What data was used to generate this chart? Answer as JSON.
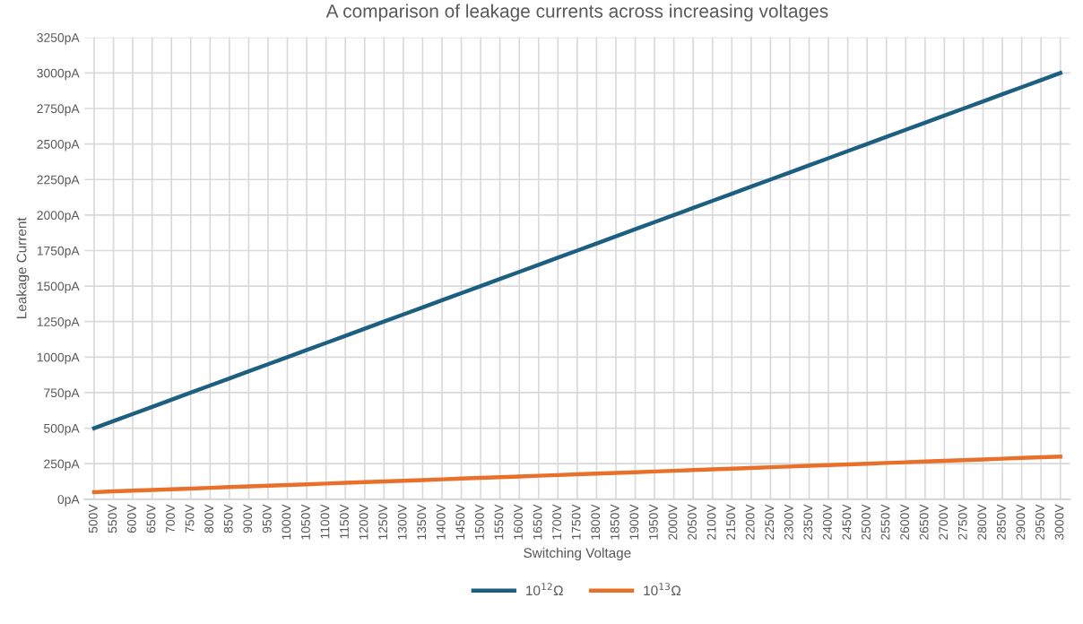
{
  "chart_data": {
    "type": "line",
    "title": "A comparison of leakage currents across increasing voltages",
    "xlabel": "Switching Voltage",
    "ylabel": "Leakage Current",
    "categories": [
      "500V",
      "550V",
      "600V",
      "650V",
      "700V",
      "750V",
      "800V",
      "850V",
      "900V",
      "950V",
      "1000V",
      "1050V",
      "1100V",
      "1150V",
      "1200V",
      "1250V",
      "1300V",
      "1350V",
      "1400V",
      "1450V",
      "1500V",
      "1550V",
      "1600V",
      "1650V",
      "1700V",
      "1750V",
      "1800V",
      "1850V",
      "1900V",
      "1950V",
      "2000V",
      "2050V",
      "2100V",
      "2150V",
      "2200V",
      "2250V",
      "2300V",
      "2350V",
      "2400V",
      "2450V",
      "2500V",
      "2550V",
      "2600V",
      "2650V",
      "2700V",
      "2750V",
      "2800V",
      "2850V",
      "2900V",
      "2950V",
      "3000V"
    ],
    "series": [
      {
        "name": "10$^{12}$Ω",
        "color": "#1d5f80",
        "values": [
          500,
          550,
          600,
          650,
          700,
          750,
          800,
          850,
          900,
          950,
          1000,
          1050,
          1100,
          1150,
          1200,
          1250,
          1300,
          1350,
          1400,
          1450,
          1500,
          1550,
          1600,
          1650,
          1700,
          1750,
          1800,
          1850,
          1900,
          1950,
          2000,
          2050,
          2100,
          2150,
          2200,
          2250,
          2300,
          2350,
          2400,
          2450,
          2500,
          2550,
          2600,
          2650,
          2700,
          2750,
          2800,
          2850,
          2900,
          2950,
          3000
        ]
      },
      {
        "name": "10$^{13}$Ω",
        "color": "#e8702a",
        "values": [
          50,
          55,
          60,
          65,
          70,
          75,
          80,
          85,
          90,
          95,
          100,
          105,
          110,
          115,
          120,
          125,
          130,
          135,
          140,
          145,
          150,
          155,
          160,
          165,
          170,
          175,
          180,
          185,
          190,
          195,
          200,
          205,
          210,
          215,
          220,
          225,
          230,
          235,
          240,
          245,
          250,
          255,
          260,
          265,
          270,
          275,
          280,
          285,
          290,
          295,
          300
        ]
      }
    ],
    "ylim": [
      0,
      3250
    ],
    "yticks": [
      {
        "value": 0,
        "label": "0pA"
      },
      {
        "value": 250,
        "label": "250pA"
      },
      {
        "value": 500,
        "label": "500pA"
      },
      {
        "value": 750,
        "label": "750pA"
      },
      {
        "value": 1000,
        "label": "1000pA"
      },
      {
        "value": 1250,
        "label": "1250pA"
      },
      {
        "value": 1500,
        "label": "1500pA"
      },
      {
        "value": 1750,
        "label": "1750pA"
      },
      {
        "value": 2000,
        "label": "2000pA"
      },
      {
        "value": 2250,
        "label": "2250pA"
      },
      {
        "value": 2500,
        "label": "2500pA"
      },
      {
        "value": 2750,
        "label": "2750pA"
      },
      {
        "value": 3000,
        "label": "3000pA"
      },
      {
        "value": 3250,
        "label": "3250pA"
      }
    ],
    "grid": true,
    "legend": "bottom",
    "marker": "none",
    "line_style": "solid"
  }
}
